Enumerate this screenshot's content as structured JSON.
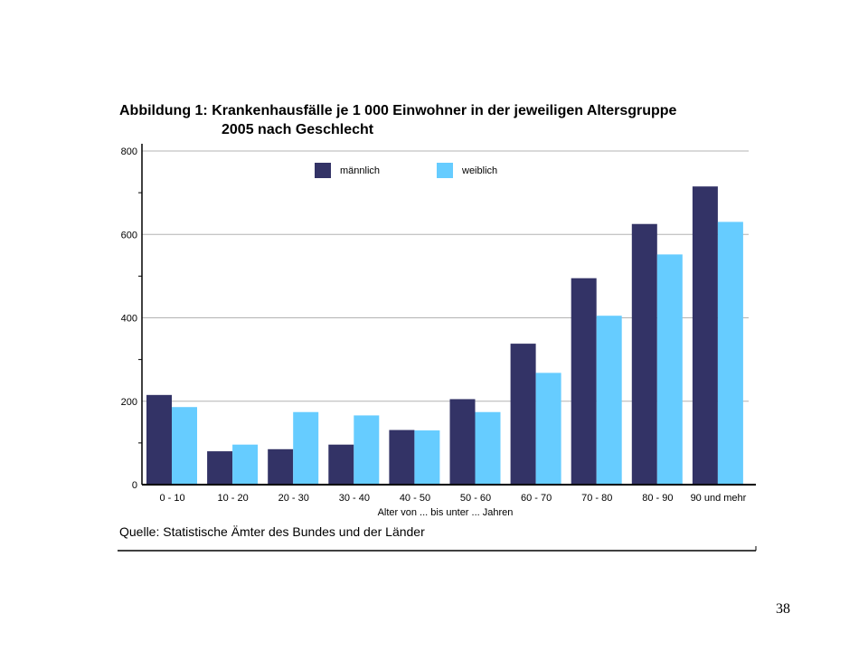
{
  "title_line1": "Abbildung 1: Krankenhausfälle je 1 000 Einwohner in der jeweiligen Altersgruppe",
  "title_line2": "2005 nach Geschlecht",
  "source": "Quelle: Statistische Ämter des Bundes und der Länder",
  "page_number": "38",
  "chart_data": {
    "type": "bar",
    "title": "Abbildung 1: Krankenhausfälle je 1 000 Einwohner in der jeweiligen Altersgruppe 2005 nach Geschlecht",
    "xlabel": "Alter von ... bis unter ... Jahren",
    "ylabel": "",
    "ylim": [
      0,
      800
    ],
    "yticks": [
      0,
      200,
      400,
      600,
      800
    ],
    "grid": true,
    "legend_position": "top-center",
    "categories": [
      "0 - 10",
      "10 - 20",
      "20 - 30",
      "30 - 40",
      "40 - 50",
      "50 - 60",
      "60 - 70",
      "70 - 80",
      "80 - 90",
      "90 und mehr"
    ],
    "series": [
      {
        "name": "männlich",
        "color": "#333366",
        "values": [
          215,
          80,
          85,
          96,
          131,
          205,
          338,
          495,
          625,
          715
        ]
      },
      {
        "name": "weiblich",
        "color": "#66ccff",
        "values": [
          186,
          96,
          174,
          166,
          130,
          174,
          268,
          405,
          552,
          630
        ]
      }
    ]
  }
}
